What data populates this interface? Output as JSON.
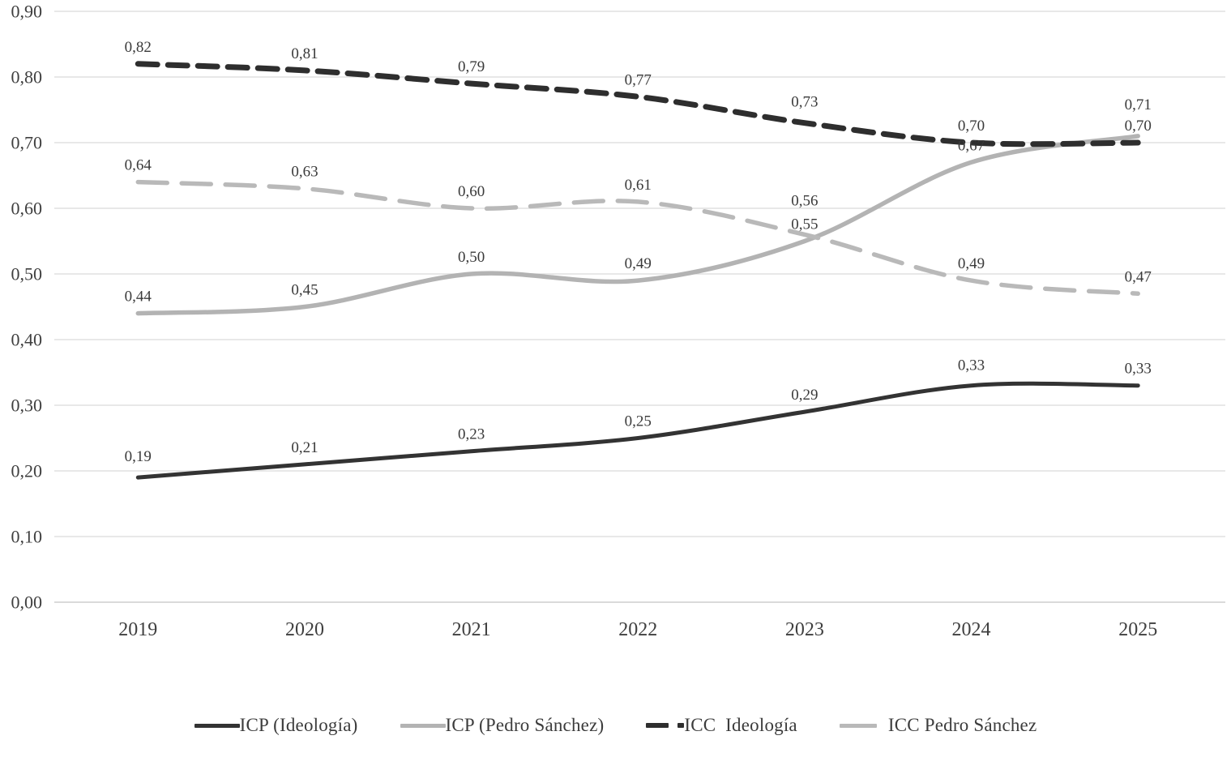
{
  "chart_data": {
    "type": "line",
    "title": "",
    "xlabel": "",
    "ylabel": "",
    "x": [
      "2019",
      "2020",
      "2021",
      "2022",
      "2023",
      "2024",
      "2025"
    ],
    "y_ticks": [
      0.0,
      0.1,
      0.2,
      0.3,
      0.4,
      0.5,
      0.6,
      0.7,
      0.8,
      0.9
    ],
    "y_tick_labels": [
      "0,00",
      "0,10",
      "0,20",
      "0,30",
      "0,40",
      "0,50",
      "0,60",
      "0,70",
      "0,80",
      "0,90"
    ],
    "ylim": [
      0.0,
      0.9
    ],
    "grid": "horizontal",
    "legend_position": "bottom",
    "decimal_separator": ",",
    "series": [
      {
        "name": "ICP (Ideología)",
        "values": [
          0.19,
          0.21,
          0.23,
          0.25,
          0.29,
          0.33,
          0.33
        ],
        "labels": [
          "0,19",
          "0,21",
          "0,23",
          "0,25",
          "0,29",
          "0,33",
          "0,33"
        ],
        "color": "#333333",
        "dashed": false
      },
      {
        "name": "ICP (Pedro Sánchez)",
        "values": [
          0.44,
          0.45,
          0.5,
          0.49,
          0.55,
          0.67,
          0.71
        ],
        "labels": [
          "0,44",
          "0,45",
          "0,50",
          "0,49",
          "0,55",
          "0,67",
          "0,71"
        ],
        "color": "#b3b3b3",
        "dashed": false
      },
      {
        "name": "ICC  Ideología",
        "values": [
          0.82,
          0.81,
          0.79,
          0.77,
          0.73,
          0.7,
          0.7
        ],
        "labels": [
          "0,82",
          "0,81",
          "0,79",
          "0,77",
          "0,73",
          "0,70",
          "0,70"
        ],
        "color": "#2e2e2e",
        "dashed": true
      },
      {
        "name": "ICC Pedro Sánchez",
        "values": [
          0.64,
          0.63,
          0.6,
          0.61,
          0.56,
          0.49,
          0.47
        ],
        "labels": [
          "0,64",
          "0,63",
          "0,60",
          "0,61",
          "0,56",
          "0,49",
          "0,47"
        ],
        "color": "#b9b9b9",
        "dashed": true
      }
    ]
  }
}
